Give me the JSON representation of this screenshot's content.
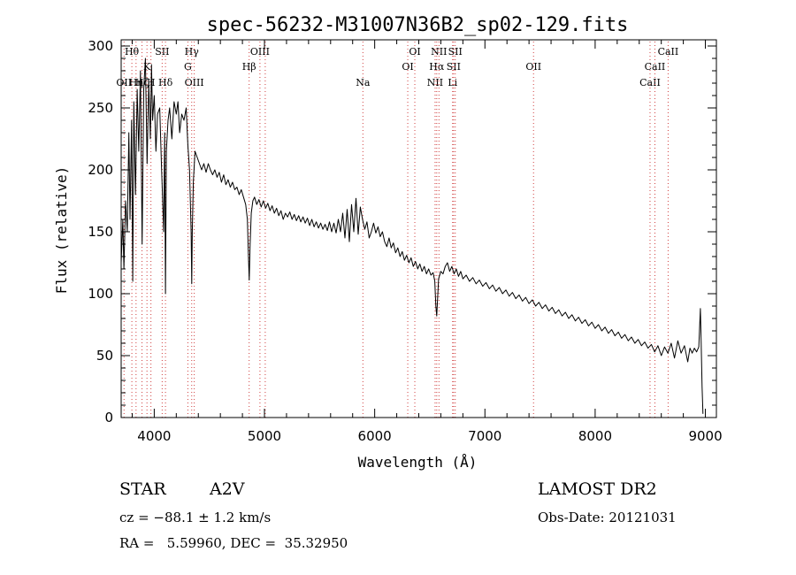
{
  "chart_data": {
    "type": "line",
    "title": "spec-56232-M31007N36B2_sp02-129.fits",
    "xlabel": "Wavelength (Å)",
    "ylabel": "Flux (relative)",
    "xlim": [
      3700,
      9100
    ],
    "ylim": [
      0,
      305
    ],
    "xticks": [
      4000,
      5000,
      6000,
      7000,
      8000,
      9000
    ],
    "yticks": [
      0,
      50,
      100,
      150,
      200,
      250,
      300
    ],
    "x_minor_step": 200,
    "y_minor_step": 10,
    "line_color": "#000000",
    "marker_color": "#d04040",
    "series": [
      {
        "points": [
          [
            3700,
            125
          ],
          [
            3715,
            160
          ],
          [
            3725,
            120
          ],
          [
            3740,
            175
          ],
          [
            3755,
            150
          ],
          [
            3770,
            230
          ],
          [
            3780,
            160
          ],
          [
            3795,
            240
          ],
          [
            3805,
            110
          ],
          [
            3815,
            255
          ],
          [
            3830,
            180
          ],
          [
            3845,
            265
          ],
          [
            3860,
            215
          ],
          [
            3875,
            280
          ],
          [
            3890,
            140
          ],
          [
            3905,
            265
          ],
          [
            3920,
            290
          ],
          [
            3935,
            205
          ],
          [
            3950,
            270
          ],
          [
            3965,
            225
          ],
          [
            3975,
            285
          ],
          [
            3985,
            240
          ],
          [
            4000,
            260
          ],
          [
            4015,
            215
          ],
          [
            4030,
            245
          ],
          [
            4050,
            250
          ],
          [
            4065,
            205
          ],
          [
            4075,
            180
          ],
          [
            4085,
            150
          ],
          [
            4095,
            230
          ],
          [
            4102,
            100
          ],
          [
            4110,
            215
          ],
          [
            4125,
            240
          ],
          [
            4140,
            250
          ],
          [
            4160,
            225
          ],
          [
            4180,
            255
          ],
          [
            4200,
            245
          ],
          [
            4215,
            255
          ],
          [
            4230,
            230
          ],
          [
            4250,
            245
          ],
          [
            4270,
            240
          ],
          [
            4290,
            250
          ],
          [
            4305,
            220
          ],
          [
            4320,
            200
          ],
          [
            4335,
            150
          ],
          [
            4340,
            108
          ],
          [
            4345,
            150
          ],
          [
            4355,
            190
          ],
          [
            4370,
            215
          ],
          [
            4390,
            210
          ],
          [
            4410,
            205
          ],
          [
            4430,
            200
          ],
          [
            4450,
            205
          ],
          [
            4470,
            198
          ],
          [
            4490,
            205
          ],
          [
            4510,
            200
          ],
          [
            4530,
            196
          ],
          [
            4550,
            200
          ],
          [
            4570,
            194
          ],
          [
            4590,
            198
          ],
          [
            4610,
            190
          ],
          [
            4630,
            196
          ],
          [
            4650,
            188
          ],
          [
            4670,
            192
          ],
          [
            4690,
            186
          ],
          [
            4710,
            190
          ],
          [
            4730,
            184
          ],
          [
            4750,
            186
          ],
          [
            4770,
            180
          ],
          [
            4790,
            184
          ],
          [
            4810,
            178
          ],
          [
            4830,
            172
          ],
          [
            4845,
            160
          ],
          [
            4855,
            130
          ],
          [
            4862,
            111
          ],
          [
            4870,
            140
          ],
          [
            4880,
            165
          ],
          [
            4895,
            175
          ],
          [
            4910,
            178
          ],
          [
            4930,
            172
          ],
          [
            4950,
            176
          ],
          [
            4970,
            170
          ],
          [
            4990,
            175
          ],
          [
            5010,
            169
          ],
          [
            5030,
            173
          ],
          [
            5050,
            167
          ],
          [
            5070,
            171
          ],
          [
            5090,
            165
          ],
          [
            5110,
            169
          ],
          [
            5130,
            163
          ],
          [
            5150,
            167
          ],
          [
            5170,
            160
          ],
          [
            5190,
            165
          ],
          [
            5210,
            162
          ],
          [
            5230,
            166
          ],
          [
            5250,
            160
          ],
          [
            5270,
            164
          ],
          [
            5290,
            159
          ],
          [
            5310,
            163
          ],
          [
            5330,
            158
          ],
          [
            5350,
            162
          ],
          [
            5370,
            157
          ],
          [
            5390,
            161
          ],
          [
            5410,
            155
          ],
          [
            5430,
            160
          ],
          [
            5450,
            154
          ],
          [
            5470,
            158
          ],
          [
            5490,
            153
          ],
          [
            5510,
            157
          ],
          [
            5530,
            152
          ],
          [
            5550,
            156
          ],
          [
            5570,
            151
          ],
          [
            5590,
            158
          ],
          [
            5610,
            150
          ],
          [
            5630,
            157
          ],
          [
            5650,
            149
          ],
          [
            5670,
            160
          ],
          [
            5690,
            150
          ],
          [
            5710,
            165
          ],
          [
            5730,
            145
          ],
          [
            5750,
            168
          ],
          [
            5770,
            142
          ],
          [
            5790,
            172
          ],
          [
            5810,
            150
          ],
          [
            5830,
            177
          ],
          [
            5850,
            148
          ],
          [
            5870,
            170
          ],
          [
            5890,
            160
          ],
          [
            5910,
            152
          ],
          [
            5930,
            158
          ],
          [
            5950,
            145
          ],
          [
            5970,
            150
          ],
          [
            5990,
            157
          ],
          [
            6010,
            149
          ],
          [
            6030,
            154
          ],
          [
            6050,
            146
          ],
          [
            6070,
            150
          ],
          [
            6090,
            142
          ],
          [
            6110,
            138
          ],
          [
            6130,
            145
          ],
          [
            6150,
            137
          ],
          [
            6170,
            141
          ],
          [
            6190,
            133
          ],
          [
            6210,
            137
          ],
          [
            6230,
            130
          ],
          [
            6250,
            134
          ],
          [
            6270,
            127
          ],
          [
            6290,
            131
          ],
          [
            6310,
            125
          ],
          [
            6330,
            129
          ],
          [
            6350,
            122
          ],
          [
            6370,
            126
          ],
          [
            6390,
            120
          ],
          [
            6410,
            124
          ],
          [
            6430,
            118
          ],
          [
            6450,
            122
          ],
          [
            6470,
            116
          ],
          [
            6490,
            120
          ],
          [
            6510,
            115
          ],
          [
            6530,
            117
          ],
          [
            6545,
            110
          ],
          [
            6555,
            90
          ],
          [
            6563,
            82
          ],
          [
            6570,
            95
          ],
          [
            6580,
            112
          ],
          [
            6600,
            118
          ],
          [
            6620,
            116
          ],
          [
            6640,
            122
          ],
          [
            6660,
            125
          ],
          [
            6680,
            118
          ],
          [
            6700,
            122
          ],
          [
            6720,
            116
          ],
          [
            6740,
            120
          ],
          [
            6760,
            114
          ],
          [
            6780,
            118
          ],
          [
            6800,
            112
          ],
          [
            6830,
            115
          ],
          [
            6860,
            110
          ],
          [
            6890,
            113
          ],
          [
            6920,
            108
          ],
          [
            6950,
            111
          ],
          [
            6980,
            106
          ],
          [
            7010,
            109
          ],
          [
            7040,
            104
          ],
          [
            7070,
            107
          ],
          [
            7100,
            102
          ],
          [
            7130,
            105
          ],
          [
            7160,
            100
          ],
          [
            7190,
            103
          ],
          [
            7220,
            98
          ],
          [
            7250,
            101
          ],
          [
            7280,
            96
          ],
          [
            7310,
            99
          ],
          [
            7340,
            94
          ],
          [
            7370,
            97
          ],
          [
            7400,
            92
          ],
          [
            7430,
            95
          ],
          [
            7460,
            90
          ],
          [
            7490,
            93
          ],
          [
            7520,
            88
          ],
          [
            7550,
            91
          ],
          [
            7580,
            86
          ],
          [
            7610,
            89
          ],
          [
            7640,
            84
          ],
          [
            7670,
            87
          ],
          [
            7700,
            82
          ],
          [
            7730,
            85
          ],
          [
            7760,
            80
          ],
          [
            7790,
            83
          ],
          [
            7820,
            78
          ],
          [
            7850,
            81
          ],
          [
            7880,
            76
          ],
          [
            7910,
            79
          ],
          [
            7940,
            74
          ],
          [
            7970,
            77
          ],
          [
            8000,
            72
          ],
          [
            8030,
            75
          ],
          [
            8060,
            70
          ],
          [
            8090,
            73
          ],
          [
            8120,
            68
          ],
          [
            8150,
            71
          ],
          [
            8180,
            66
          ],
          [
            8210,
            69
          ],
          [
            8240,
            64
          ],
          [
            8270,
            67
          ],
          [
            8300,
            62
          ],
          [
            8330,
            65
          ],
          [
            8360,
            60
          ],
          [
            8390,
            63
          ],
          [
            8420,
            58
          ],
          [
            8450,
            61
          ],
          [
            8480,
            56
          ],
          [
            8510,
            59
          ],
          [
            8540,
            53
          ],
          [
            8570,
            58
          ],
          [
            8600,
            50
          ],
          [
            8630,
            57
          ],
          [
            8660,
            52
          ],
          [
            8690,
            60
          ],
          [
            8720,
            48
          ],
          [
            8750,
            62
          ],
          [
            8780,
            52
          ],
          [
            8810,
            58
          ],
          [
            8840,
            45
          ],
          [
            8860,
            56
          ],
          [
            8880,
            52
          ],
          [
            8900,
            56
          ],
          [
            8920,
            53
          ],
          [
            8940,
            57
          ],
          [
            8955,
            88
          ],
          [
            8962,
            60
          ],
          [
            8970,
            25
          ],
          [
            8978,
            3
          ]
        ]
      }
    ],
    "line_markers": [
      {
        "x": 3726,
        "label": "OII",
        "row": 3
      },
      {
        "x": 3797,
        "label": "Hθ",
        "row": 1
      },
      {
        "x": 3835,
        "label": "Hη",
        "row": 3
      },
      {
        "x": 3889,
        "label": "Hζ",
        "row": 3
      },
      {
        "x": 3934,
        "label": "K",
        "row": 2
      },
      {
        "x": 3970,
        "label": "H",
        "row": 3
      },
      {
        "x": 4072,
        "label": "SII",
        "row": 1
      },
      {
        "x": 4102,
        "label": "Hδ",
        "row": 3
      },
      {
        "x": 4305,
        "label": "G",
        "row": 2
      },
      {
        "x": 4340,
        "label": "Hγ",
        "row": 1
      },
      {
        "x": 4363,
        "label": "OIII",
        "row": 3
      },
      {
        "x": 4861,
        "label": "Hβ",
        "row": 2
      },
      {
        "x": 4959,
        "label": "OIII",
        "row": 1
      },
      {
        "x": 5007,
        "label": "",
        "row": 1
      },
      {
        "x": 5893,
        "label": "Na",
        "row": 3
      },
      {
        "x": 6300,
        "label": "OI",
        "row": 2
      },
      {
        "x": 6364,
        "label": "OI",
        "row": 1
      },
      {
        "x": 6548,
        "label": "NII",
        "row": 3
      },
      {
        "x": 6563,
        "label": "Hα",
        "row": 2
      },
      {
        "x": 6583,
        "label": "NII",
        "row": 1
      },
      {
        "x": 6707,
        "label": "Li",
        "row": 3
      },
      {
        "x": 6716,
        "label": "SII",
        "row": 2
      },
      {
        "x": 6731,
        "label": "SII",
        "row": 1
      },
      {
        "x": 7441,
        "label": "OII",
        "row": 2
      },
      {
        "x": 8498,
        "label": "CaII",
        "row": 3
      },
      {
        "x": 8542,
        "label": "CaII",
        "row": 2
      },
      {
        "x": 8662,
        "label": "CaII",
        "row": 1
      }
    ]
  },
  "info": {
    "object_class": "STAR",
    "subclass": "A2V",
    "survey": "LAMOST DR2",
    "redshift": "cz = −88.1 ± 1.2 km/s",
    "obs_date": "Obs-Date: 20121031",
    "coords": "RA =   5.59960, DEC =  35.32950"
  }
}
